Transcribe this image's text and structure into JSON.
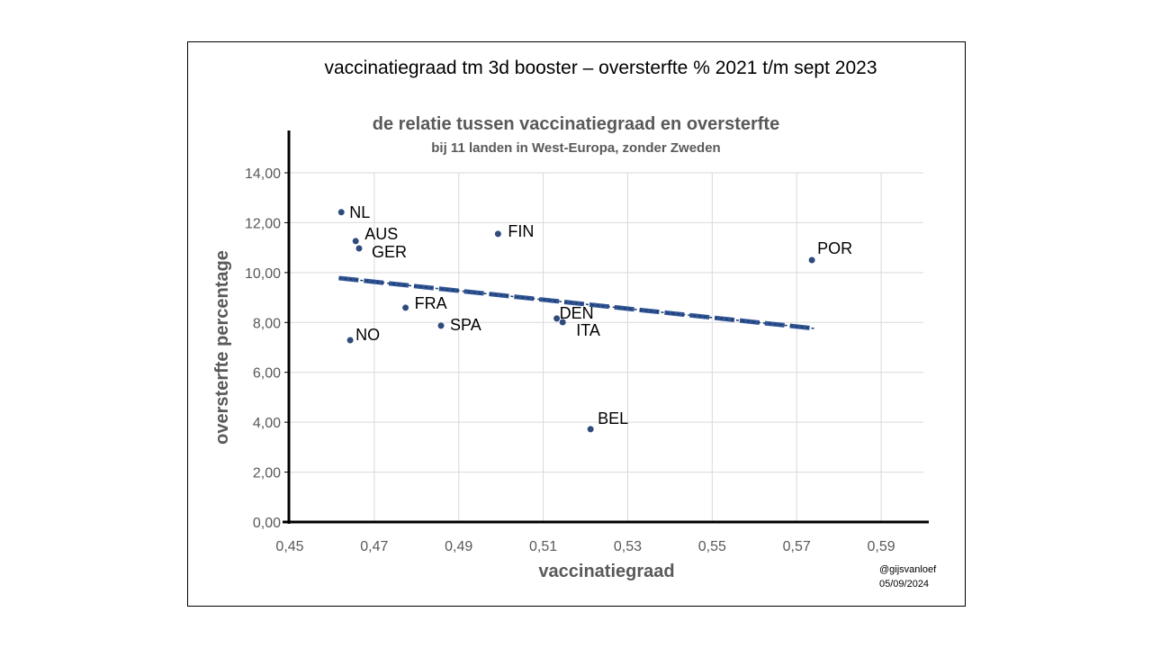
{
  "chart_data": {
    "type": "scatter",
    "title": "vaccinatiegraad tm 3d booster – oversterfte % 2021 t/m sept 2023",
    "subtitle": "de relatie tussen vaccinatiegraad en oversterfte",
    "subtitle2": "bij 11 landen in West-Europa, zonder Zweden",
    "xlabel": "vaccinatiegraad",
    "ylabel": "oversterfte percentage",
    "xlim": [
      0.45,
      0.6
    ],
    "ylim": [
      0,
      14
    ],
    "xticks": [
      "0,45",
      "0,47",
      "0,49",
      "0,51",
      "0,53",
      "0,55",
      "0,57",
      "0,59"
    ],
    "xtick_values": [
      0.45,
      0.47,
      0.49,
      0.51,
      0.53,
      0.55,
      0.57,
      0.59
    ],
    "yticks": [
      "0,00",
      "2,00",
      "4,00",
      "6,00",
      "8,00",
      "10,00",
      "12,00",
      "14,00"
    ],
    "ytick_values": [
      0,
      2,
      4,
      6,
      8,
      10,
      12,
      14
    ],
    "grid": true,
    "point_color": "#2F4B7C",
    "trend_color": "#2F5597",
    "points": [
      {
        "label": "NL",
        "x": 0.4622,
        "y": 12.42
      },
      {
        "label": "AUS",
        "x": 0.4656,
        "y": 11.26
      },
      {
        "label": "GER",
        "x": 0.4664,
        "y": 10.97
      },
      {
        "label": "FIN",
        "x": 0.4993,
        "y": 11.55
      },
      {
        "label": "POR",
        "x": 0.5736,
        "y": 10.5
      },
      {
        "label": "FRA",
        "x": 0.4774,
        "y": 8.59
      },
      {
        "label": "SPA",
        "x": 0.4858,
        "y": 7.87
      },
      {
        "label": "DEN",
        "x": 0.5132,
        "y": 8.16
      },
      {
        "label": "ITA",
        "x": 0.5146,
        "y": 8.01
      },
      {
        "label": "NO",
        "x": 0.4643,
        "y": 7.29
      },
      {
        "label": "BEL",
        "x": 0.5212,
        "y": 3.72
      }
    ],
    "trendline": {
      "type": "linear",
      "x": [
        0.4616,
        0.5742
      ],
      "y": [
        9.78,
        7.76
      ]
    }
  },
  "credit": {
    "handle": "@gijsvanloef",
    "date": "05/09/2024"
  }
}
